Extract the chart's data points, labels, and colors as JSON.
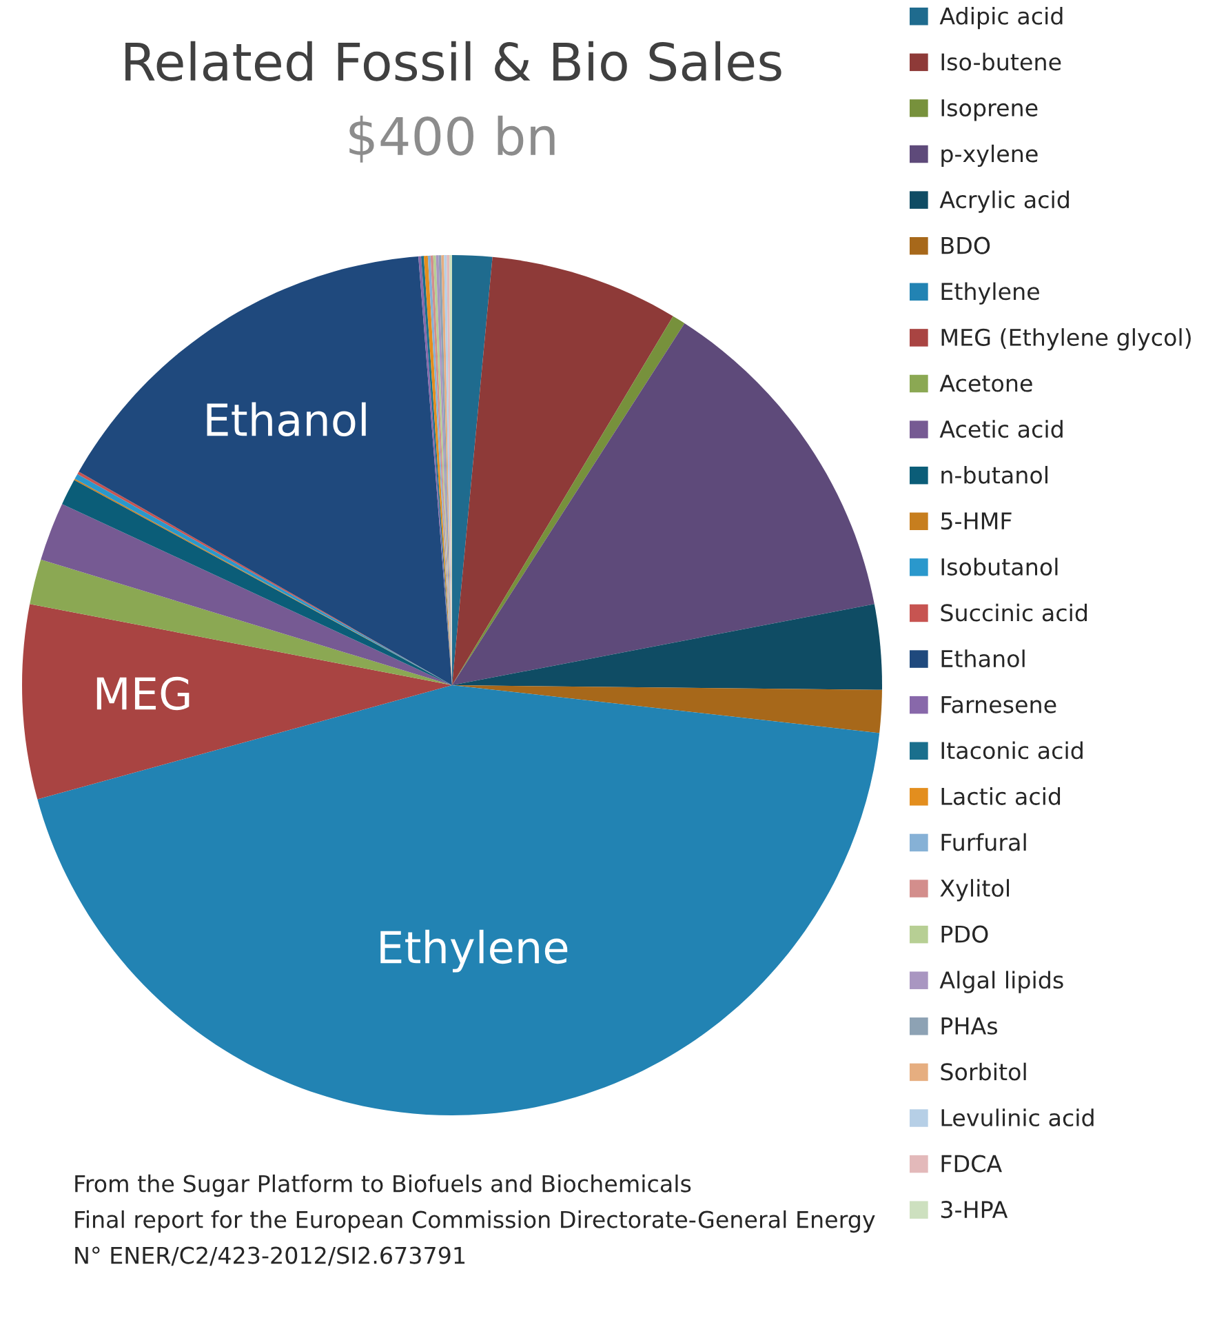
{
  "chart_data": {
    "type": "pie",
    "title": "Related Fossil & Bio Sales",
    "subtitle": "$400 bn",
    "categories": [
      "Adipic acid",
      "Iso-butene",
      "Isoprene",
      "p-xylene",
      "Acrylic acid",
      "BDO",
      "Ethylene",
      "MEG (Ethylene glycol)",
      "Acetone",
      "Acetic acid",
      "n-butanol",
      "5-HMF",
      "Isobutanol",
      "Succinic acid",
      "Ethanol",
      "Farnesene",
      "Itaconic acid",
      "Lactic acid",
      "Furfural",
      "Xylitol",
      "PDO",
      "Algal lipids",
      "PHAs",
      "Sorbitol",
      "Levulinic acid",
      "FDCA",
      "3-HPA"
    ],
    "values": [
      1.5,
      7.1,
      0.5,
      12.9,
      3.2,
      1.6,
      44.0,
      7.3,
      1.7,
      2.2,
      1.0,
      0.05,
      0.2,
      0.1,
      15.5,
      0.1,
      0.1,
      0.15,
      0.1,
      0.1,
      0.1,
      0.1,
      0.1,
      0.1,
      0.1,
      0.1,
      0.1
    ],
    "colors": [
      "#1f6b8e",
      "#8e3a38",
      "#77913c",
      "#5e4a7a",
      "#0f4c64",
      "#a7681a",
      "#2283b3",
      "#a94442",
      "#8ba853",
      "#765a93",
      "#0b5d78",
      "#c77e1e",
      "#2a98cc",
      "#c75451",
      "#1f497d",
      "#8868aa",
      "#1a6f8d",
      "#e38e1e",
      "#86b1d6",
      "#d38e8c",
      "#b7cf94",
      "#a996c1",
      "#8da2b4",
      "#e6ae80",
      "#b6cfe6",
      "#e3b9ba",
      "#cde0bf"
    ],
    "legend": "right",
    "annotations": [
      {
        "text": "Ethanol",
        "x": "Ethanol"
      },
      {
        "text": "MEG",
        "x": "MEG (Ethylene glycol)"
      },
      {
        "text": "Ethylene",
        "x": "Ethylene"
      },
      "From the Sugar Platform to Biofuels and Biochemicals",
      "Final report for the European Commission Directorate-General Energy",
      "N° ENER/C2/423-2012/SI2.673791"
    ]
  }
}
